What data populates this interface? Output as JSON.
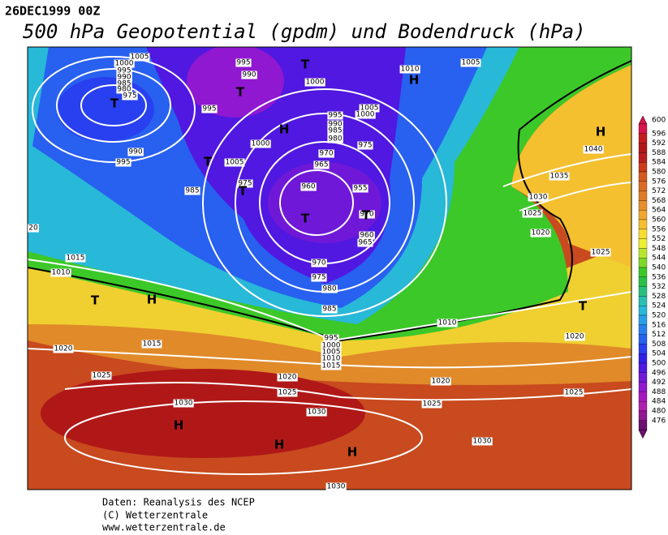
{
  "header": {
    "date": "26DEC1999 00Z",
    "title": "500 hPa Geopotential (gpdm) und Bodendruck (hPa)"
  },
  "map": {
    "isobar_labels": [
      1005,
      1000,
      995,
      990,
      985,
      980,
      975,
      995,
      990,
      995,
      1000,
      1005,
      1000,
      995,
      990,
      985,
      980,
      975,
      970,
      965,
      960,
      955,
      970,
      960,
      965,
      970,
      975,
      980,
      985,
      990,
      995,
      1000,
      1005,
      975,
      985,
      1010,
      1005,
      1040,
      1035,
      1030,
      1025,
      1020,
      1025,
      1015,
      1010,
      1010,
      1020,
      995,
      1000,
      1005,
      1010,
      1015,
      1020,
      1015,
      1025,
      1020,
      1025,
      1020,
      1025,
      1025,
      1030,
      1030,
      1030,
      1030,
      20
    ],
    "centers": [
      "T",
      "T",
      "T",
      "H",
      "H",
      "T",
      "T",
      "T",
      "T",
      "H",
      "T",
      "H",
      "T",
      "H",
      "H",
      "H"
    ]
  },
  "legend": {
    "levels": [
      600,
      596,
      592,
      588,
      584,
      580,
      576,
      572,
      568,
      564,
      560,
      556,
      552,
      548,
      544,
      540,
      536,
      532,
      528,
      524,
      520,
      516,
      512,
      508,
      504,
      500,
      496,
      492,
      488,
      484,
      480,
      476
    ],
    "colors": [
      "#d8144c",
      "#c41c1c",
      "#b01818",
      "#bc1e1e",
      "#cc3a1a",
      "#d45a20",
      "#dc6a24",
      "#e07a28",
      "#e88e2c",
      "#f0a82c",
      "#f4c030",
      "#f8dc30",
      "#ecf030",
      "#b8e62c",
      "#7ed82a",
      "#3cc828",
      "#28c048",
      "#28c080",
      "#28c0b0",
      "#28b8d8",
      "#28a0e8",
      "#2880f0",
      "#2860f0",
      "#2840f0",
      "#3020e8",
      "#5018e0",
      "#7018d8",
      "#9018d0",
      "#a818c0",
      "#b020b0",
      "#901890",
      "#6c1070"
    ]
  },
  "footer": [
    "Daten: Reanalysis des NCEP",
    "(C) Wetterzentrale",
    "www.wetterzentrale.de"
  ]
}
